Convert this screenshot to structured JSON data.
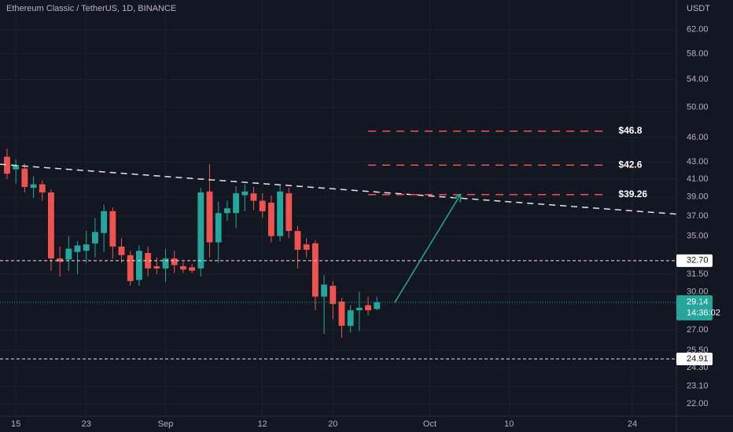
{
  "chart_data": {
    "type": "candlestick",
    "title": "Ethereum Classic / TetherUS, 1D, BINANCE",
    "currency": "USDT",
    "up_color": "#26a69a",
    "down_color": "#ef5350",
    "log_scale": true,
    "x": [
      -1,
      0,
      1,
      2,
      3,
      4,
      5,
      6,
      7,
      8,
      9,
      10,
      11,
      12,
      13,
      14,
      15,
      16,
      17,
      18,
      19,
      20,
      21,
      22,
      23,
      24,
      25,
      26,
      27,
      28,
      29,
      30,
      31,
      32,
      33,
      34,
      35,
      36,
      37,
      38,
      39,
      40,
      41
    ],
    "open": [
      43.6,
      42.1,
      42.2,
      40.0,
      40.4,
      39.5,
      32.9,
      32.8,
      33.5,
      33.6,
      34.3,
      35.3,
      37.5,
      34.0,
      33.2,
      31.0,
      33.4,
      32.2,
      32.0,
      32.9,
      32.2,
      32.1,
      32.0,
      39.6,
      34.4,
      37.3,
      37.3,
      39.2,
      39.4,
      38.6,
      38.4,
      35.0,
      39.4,
      35.5,
      34.2,
      34.3,
      29.6,
      30.5,
      29.2,
      27.3,
      28.5,
      28.9,
      28.6
    ],
    "high": [
      44.6,
      43.3,
      42.8,
      41.3,
      40.8,
      39.8,
      34.0,
      35.0,
      34.5,
      35.5,
      36.8,
      38.2,
      37.9,
      34.8,
      33.6,
      34.1,
      34.0,
      33.0,
      33.8,
      33.6,
      32.6,
      32.4,
      40.0,
      42.7,
      38.5,
      38.6,
      40.2,
      40.4,
      40.1,
      39.4,
      39.2,
      40.3,
      40.0,
      36.0,
      34.8,
      34.6,
      31.4,
      30.9,
      29.5,
      28.9,
      30.0,
      29.6,
      29.6
    ],
    "low": [
      41.0,
      40.5,
      39.5,
      38.9,
      38.6,
      31.8,
      31.3,
      31.8,
      31.5,
      32.5,
      33.0,
      33.5,
      32.9,
      32.5,
      30.5,
      30.5,
      31.3,
      31.5,
      30.8,
      31.6,
      31.6,
      31.6,
      31.3,
      33.0,
      32.5,
      36.5,
      35.8,
      37.5,
      37.6,
      36.8,
      34.4,
      34.5,
      34.8,
      32.0,
      33.0,
      28.5,
      26.7,
      27.8,
      26.4,
      26.8,
      26.9,
      28.1,
      28.5
    ],
    "close": [
      41.6,
      42.6,
      40.1,
      40.4,
      39.5,
      32.9,
      32.6,
      33.8,
      34.1,
      34.2,
      35.4,
      37.5,
      34.0,
      33.2,
      30.9,
      33.6,
      32.0,
      32.0,
      32.9,
      32.3,
      31.9,
      31.8,
      39.5,
      34.4,
      37.3,
      37.8,
      39.4,
      39.6,
      38.6,
      37.5,
      35.0,
      39.6,
      35.5,
      33.7,
      33.7,
      29.6,
      30.6,
      29.0,
      27.3,
      28.5,
      28.7,
      28.5,
      29.14
    ],
    "xlim": [
      -1.8,
      75
    ],
    "ylim": [
      21.25,
      67.3
    ],
    "xticks": [
      {
        "value": 0,
        "label": "15"
      },
      {
        "value": 8,
        "label": "23"
      },
      {
        "value": 17,
        "label": "Sep"
      },
      {
        "value": 28,
        "label": "12"
      },
      {
        "value": 36,
        "label": "20"
      },
      {
        "value": 47,
        "label": "Oct"
      },
      {
        "value": 56,
        "label": "10"
      },
      {
        "value": 70,
        "label": "24"
      }
    ],
    "yticks": [
      {
        "value": 62,
        "label": "62.00"
      },
      {
        "value": 58,
        "label": "58.00"
      },
      {
        "value": 54,
        "label": "54.00"
      },
      {
        "value": 50,
        "label": "50.00"
      },
      {
        "value": 46,
        "label": "46.00"
      },
      {
        "value": 43,
        "label": "43.00"
      },
      {
        "value": 41,
        "label": "41.00"
      },
      {
        "value": 39,
        "label": "39.00"
      },
      {
        "value": 37,
        "label": "37.00"
      },
      {
        "value": 35,
        "label": "35.00"
      },
      {
        "value": 31.5,
        "label": "31.50"
      },
      {
        "value": 30,
        "label": "30.00"
      },
      {
        "value": 27,
        "label": "27.00"
      },
      {
        "value": 25.5,
        "label": "25.50"
      },
      {
        "value": 24.3,
        "label": "24.30"
      },
      {
        "value": 23.1,
        "label": "23.10"
      },
      {
        "value": 22,
        "label": "22.00"
      }
    ],
    "horizontal_lines": [
      {
        "value": 32.7,
        "label": "32.70"
      },
      {
        "value": 24.91,
        "label": "24.91"
      }
    ],
    "last_price": {
      "value": 29.14,
      "label": "29.14",
      "countdown": "14:36:02"
    },
    "targets": {
      "x": [
        40,
        67
      ],
      "color": "#ef5350",
      "levels": [
        {
          "value": 46.8,
          "label": "$46.8"
        },
        {
          "value": 42.6,
          "label": "$42.6"
        },
        {
          "value": 39.26,
          "label": "$39.26"
        }
      ]
    },
    "trend_line": {
      "x": [
        -1.8,
        75
      ],
      "y": [
        42.7,
        37.2
      ]
    },
    "arrow": {
      "x": [
        43,
        50.5
      ],
      "y": [
        29.1,
        39.3
      ],
      "color": "#26a69a"
    }
  }
}
